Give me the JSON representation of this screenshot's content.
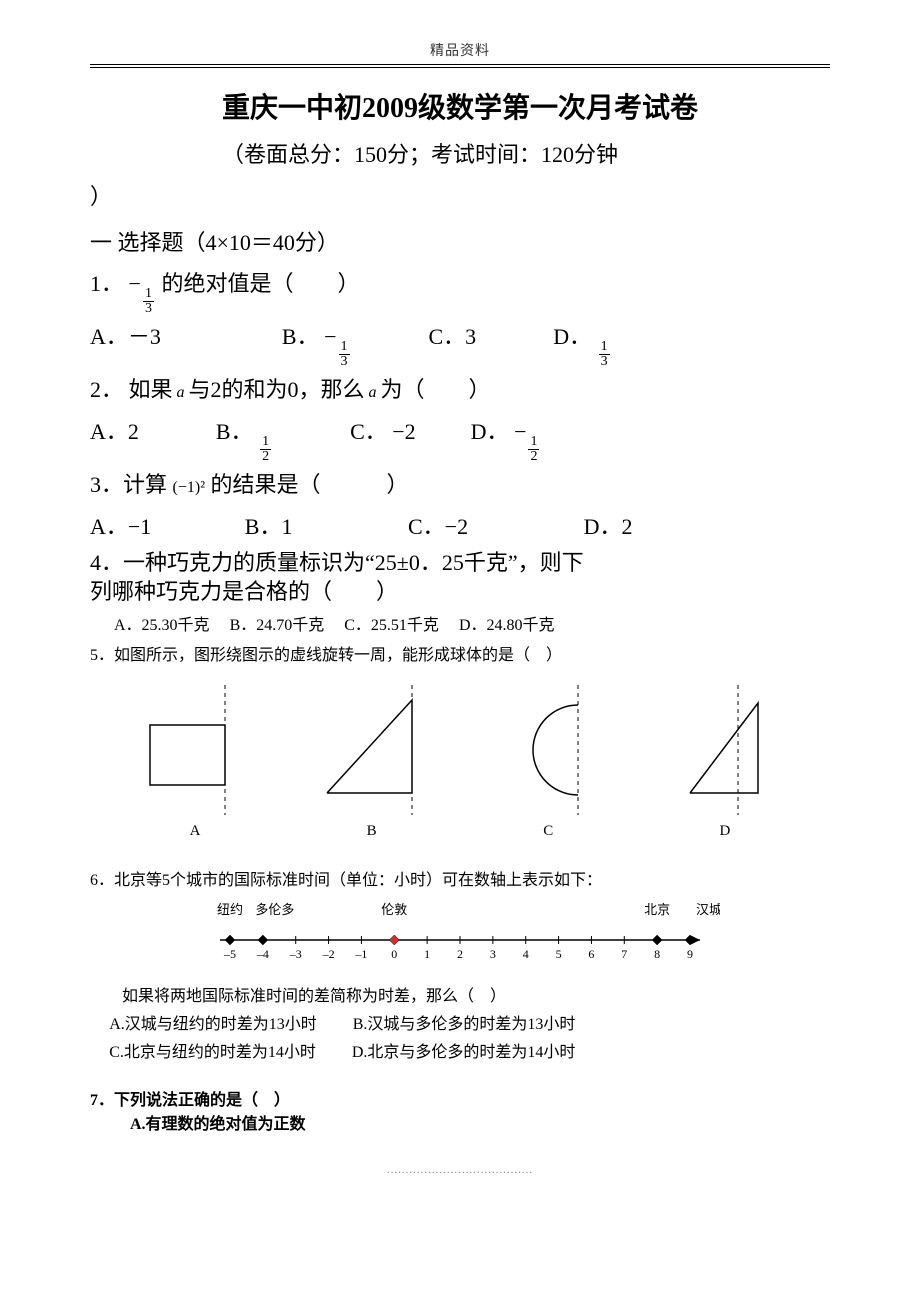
{
  "header_label": "精品资料",
  "title": "重庆一中初2009级数学第一次月考试卷",
  "subtitle_prefix": "（卷面总分：150分；考试时间：120分钟",
  "subtitle_close": "）",
  "section1": "一  选择题（4×10＝40分）",
  "q1": {
    "stem_a": "1．",
    "stem_b": "的绝对值是（  ）",
    "A": "A．－3",
    "B_pre": "B．",
    "C": "C．3",
    "D_pre": "D．"
  },
  "q2": {
    "stem_a": "2．  如果",
    "a": " a ",
    "stem_b": "与2的和为0，那么",
    "stem_c": "为（  ）",
    "A": "A．2",
    "B_pre": "B．",
    "C": "C．  −2",
    "D_pre": "D．  "
  },
  "q3": {
    "stem_a": "3．计算",
    "expr": "(−1)²",
    "stem_b": "的结果是（   ）",
    "A": "A．−1",
    "B": "B．1",
    "C": "C．−2",
    "D": "D．2"
  },
  "q4": {
    "line1": "4．一种巧克力的质量标识为“25±0．25千克”，则下",
    "line2": "列哪种巧克力是合格的（  ）",
    "A": "A．25.30千克",
    "B": "B．24.70千克",
    "C": "C．25.51千克",
    "D": "D．24.80千克"
  },
  "q5": {
    "stem": "5．如图所示，图形绕图示的虚线旋转一周，能形成球体的是（ ）",
    "labels": [
      "A",
      "B",
      "C",
      "D"
    ]
  },
  "q6": {
    "stem": "6．北京等5个城市的国际标准时间（单位：小时）可在数轴上表示如下：",
    "line2": " 如果将两地国际标准时间的差简称为时差，那么（ ）",
    "optA": "A.汉城与纽约的时差为13小时",
    "optB": "B.汉城与多伦多的时差为13小时",
    "optC": "C.北京与纽约的时差为14小时",
    "optD": "D.北京与多伦多的时差为14小时",
    "cities": {
      "nyc": "纽约",
      "toronto": "多伦多",
      "london": "伦敦",
      "beijing": "北京",
      "seoul": "汉城"
    },
    "ticks": [
      "–5",
      "–4",
      "–3",
      "–2",
      "–1",
      "0",
      "1",
      "2",
      "3",
      "4",
      "5",
      "6",
      "7",
      "8",
      "9"
    ],
    "marks": {
      "nyc": -5,
      "toronto": -4,
      "london": 0,
      "beijing": 8,
      "seoul": 9
    },
    "range": [
      -5,
      9
    ]
  },
  "q7": {
    "stem": "7．下列说法正确的是（ ）",
    "optA": "A.有理数的绝对值为正数"
  },
  "fractions": {
    "neg_one_third": {
      "sign": "−",
      "num": "1",
      "den": "3"
    },
    "one_third": {
      "sign": "",
      "num": "1",
      "den": "3"
    },
    "one_half": {
      "sign": "",
      "num": "1",
      "den": "2"
    },
    "neg_one_half": {
      "sign": "−",
      "num": "1",
      "den": "2"
    }
  },
  "figures": {
    "stroke": "#000000",
    "dash": "4,4",
    "size": {
      "w": 130,
      "h": 130
    }
  },
  "footer_dots": "......................................."
}
